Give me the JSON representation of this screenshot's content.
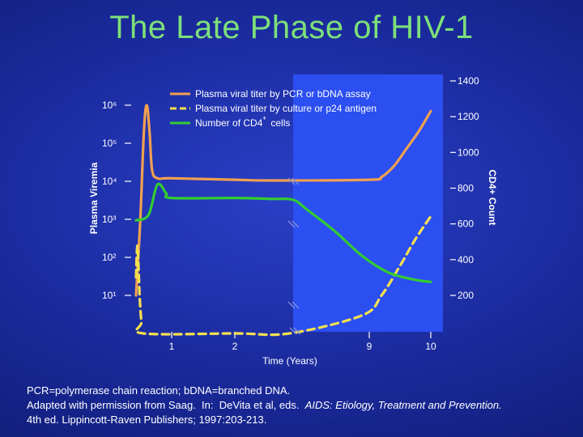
{
  "title": "The Late Phase of HIV-1",
  "footer": {
    "line1": "PCR=polymerase chain reaction; bDNA=branched DNA.",
    "line2_prefix": "Adapted with permission from Saag.  In:  DeVita et al, eds.  ",
    "line2_book": "AIDS:  Etiology, Treatment and Prevention.",
    "line3": "4th ed.  Lippincott-Raven Publishers; 1997:203-213."
  },
  "colors": {
    "orange": "#f0a050",
    "yellow": "#f5e050",
    "green": "#33cc33",
    "highlight": "#2b4ff0"
  },
  "chart_data": {
    "type": "line",
    "xlabel": "Time (Years)",
    "y_left_label": "Plasma Viremia",
    "y_right_label": "CD4+ Count",
    "x_ticks": [
      "1",
      "2",
      "9",
      "10"
    ],
    "y_left_ticks": [
      "10⁶",
      "10⁵",
      "10⁴",
      "10³",
      "10²",
      "10¹"
    ],
    "y_right_ticks": [
      "1400",
      "1200",
      "1000",
      "800",
      "600",
      "400",
      "200"
    ],
    "legend": [
      {
        "label": "Plasma viral titer by PCR or bDNA assay",
        "color": "#f0a050",
        "style": "solid"
      },
      {
        "label": "Plasma viral titer by culture or p24 antigen",
        "color": "#f5e050",
        "style": "dashed"
      },
      {
        "label": "Number of CD4   cells",
        "superscript": "+",
        "color": "#33cc33",
        "style": "solid"
      }
    ],
    "series": [
      {
        "name": "Plasma viral titer by PCR or bDNA assay",
        "axis": "left-log",
        "points": [
          [
            0.0,
            10
          ],
          [
            0.12,
            1000
          ],
          [
            0.22,
            200000
          ],
          [
            0.3,
            1000000
          ],
          [
            0.38,
            200000
          ],
          [
            0.45,
            20000
          ],
          [
            0.6,
            12000
          ],
          [
            1.0,
            12000
          ],
          [
            2.0,
            11000
          ],
          [
            5.0,
            10500
          ],
          [
            9.0,
            11000
          ],
          [
            9.2,
            13000
          ],
          [
            9.4,
            25000
          ],
          [
            9.6,
            70000
          ],
          [
            9.8,
            200000
          ],
          [
            10.0,
            700000
          ]
        ]
      },
      {
        "name": "Plasma viral titer by culture or p24 antigen",
        "axis": "left-log",
        "points": [
          [
            0.0,
            30
          ],
          [
            0.04,
            200
          ],
          [
            0.1,
            10
          ],
          [
            0.15,
            2
          ],
          [
            0.2,
            1
          ],
          [
            2.0,
            1
          ],
          [
            6.5,
            1
          ],
          [
            8.8,
            3
          ],
          [
            9.2,
            10
          ],
          [
            9.5,
            60
          ],
          [
            9.75,
            300
          ],
          [
            10.0,
            1200
          ]
        ]
      },
      {
        "name": "Number of CD4   cells",
        "axis": "right",
        "points": [
          [
            0.0,
            620
          ],
          [
            0.35,
            650
          ],
          [
            0.6,
            820
          ],
          [
            0.85,
            770
          ],
          [
            1.0,
            745
          ],
          [
            2.0,
            745
          ],
          [
            5.0,
            740
          ],
          [
            6.8,
            735
          ],
          [
            7.2,
            680
          ],
          [
            8.0,
            560
          ],
          [
            8.8,
            420
          ],
          [
            9.3,
            330
          ],
          [
            9.7,
            290
          ],
          [
            10.0,
            275
          ]
        ]
      }
    ]
  }
}
